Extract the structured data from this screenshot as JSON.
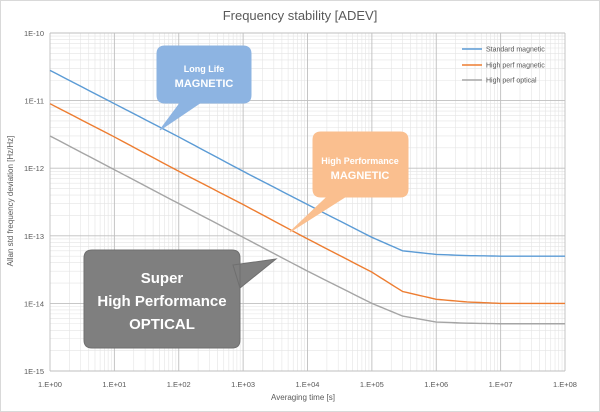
{
  "chart_data": {
    "type": "line",
    "title": "Frequency stability [ADEV]",
    "xlabel": "Averaging time [s]",
    "ylabel": "Allan std frequency deviation [Hz/Hz]",
    "x_scale": "log",
    "y_scale": "log",
    "xlim": [
      1,
      100000000
    ],
    "ylim": [
      1e-15,
      1e-10
    ],
    "x_tick_labels": [
      "1.E+00",
      "1.E+01",
      "1.E+02",
      "1.E+03",
      "1.E+04",
      "1.E+05",
      "1.E+06",
      "1.E+07",
      "1.E+08"
    ],
    "y_tick_labels": [
      "1E-10",
      "1E-11",
      "1E-12",
      "1E-13",
      "1E-14",
      "1E-15"
    ],
    "grid": true,
    "legend_position": "top-right",
    "series": [
      {
        "name": "Standard magnetic",
        "color": "#5b9bd5",
        "x": [
          1,
          10,
          100,
          1000,
          10000,
          100000,
          300000,
          1000000,
          3000000,
          10000000,
          100000000
        ],
        "y": [
          2.8e-11,
          9e-12,
          2.9e-12,
          9e-13,
          2.9e-13,
          9.5e-14,
          6e-14,
          5.3e-14,
          5.1e-14,
          5e-14,
          5e-14
        ]
      },
      {
        "name": "High perf magnetic",
        "color": "#ed7d31",
        "x": [
          1,
          10,
          100,
          1000,
          10000,
          100000,
          300000,
          1000000,
          3000000,
          10000000,
          100000000
        ],
        "y": [
          9e-12,
          2.9e-12,
          9e-13,
          2.9e-13,
          9e-14,
          2.9e-14,
          1.5e-14,
          1.15e-14,
          1.05e-14,
          1e-14,
          1e-14
        ]
      },
      {
        "name": "High perf optical",
        "color": "#a5a5a5",
        "x": [
          1,
          10,
          100,
          1000,
          10000,
          100000,
          300000,
          1000000,
          3000000,
          10000000,
          100000000
        ],
        "y": [
          3e-12,
          9.5e-13,
          3e-13,
          9.5e-14,
          3e-14,
          1e-14,
          6.5e-15,
          5.3e-15,
          5.1e-15,
          5e-15,
          5e-15
        ]
      }
    ],
    "annotations": [
      {
        "id": "long-life",
        "line1": "Long Life",
        "line2": "MAGNETIC",
        "fill": "#8db4e2",
        "text_color": "#ffffff"
      },
      {
        "id": "high-performance",
        "line1": "High Performance",
        "line2": "MAGNETIC",
        "fill": "#fabf8f",
        "text_color": "#ffffff"
      },
      {
        "id": "super-optical",
        "line1": "Super",
        "line2": "High Performance",
        "line3": "OPTICAL",
        "fill": "#7f7f7f",
        "text_color": "#ffffff"
      }
    ]
  }
}
